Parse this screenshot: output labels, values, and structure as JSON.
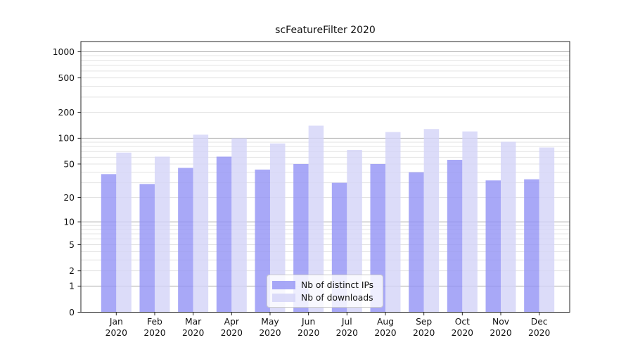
{
  "title": "scFeatureFilter 2020",
  "chart_data": {
    "type": "bar",
    "title": "scFeatureFilter 2020",
    "categories": [
      "Jan",
      "Feb",
      "Mar",
      "Apr",
      "May",
      "Jun",
      "Jul",
      "Aug",
      "Sep",
      "Oct",
      "Nov",
      "Dec"
    ],
    "x_tick_year": "2020",
    "series": [
      {
        "name": "Nb of distinct IPs",
        "color": "#9292f5",
        "values": [
          38,
          29,
          45,
          61,
          43,
          50,
          30,
          50,
          40,
          56,
          32,
          33
        ]
      },
      {
        "name": "Nb of downloads",
        "color": "#d3d3f7",
        "values": [
          68,
          61,
          110,
          100,
          87,
          140,
          73,
          118,
          128,
          120,
          91,
          78
        ]
      }
    ],
    "y_ticks": [
      1000,
      500,
      200,
      100,
      50,
      20,
      10,
      5,
      2,
      1,
      0
    ],
    "scale": "symlog (y proportional to log10(value+1))",
    "ylim": [
      0,
      1310
    ],
    "grid": "major decades dark gray, minor log steps light gray",
    "legend_position": "lower center inside plot",
    "colors": {
      "bar_dark_rendered": "#a8a8f7",
      "bar_light_rendered": "#dcdcf9",
      "major_grid": "#b3b3b3",
      "minor_grid": "#e3e3e3",
      "spine": "#262626",
      "text": "#111111"
    }
  }
}
